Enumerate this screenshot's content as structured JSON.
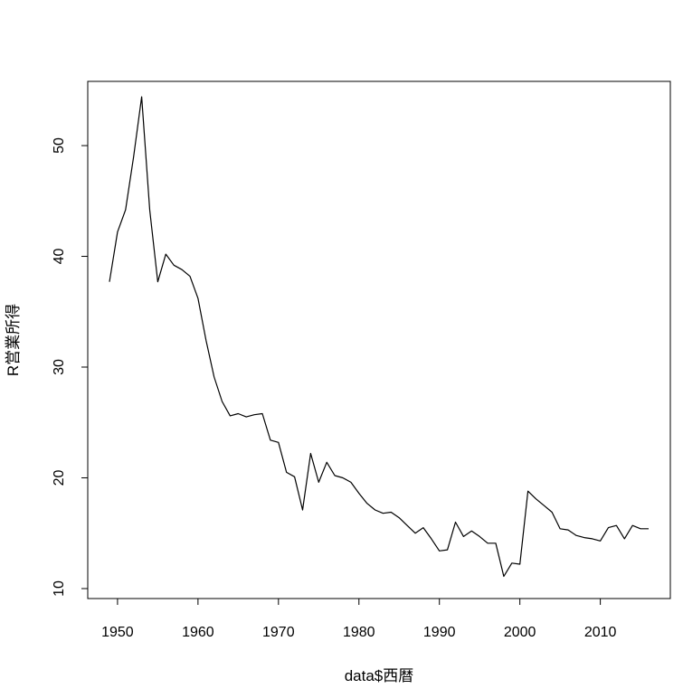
{
  "chart_data": {
    "type": "line",
    "title": "",
    "xlabel": "data$西暦",
    "ylabel": "R営業所得",
    "xlim": [
      1946.3,
      2018.7
    ],
    "ylim": [
      9.1,
      55.8
    ],
    "x_ticks": [
      1950,
      1960,
      1970,
      1980,
      1990,
      2000,
      2010
    ],
    "y_ticks": [
      10,
      20,
      30,
      40,
      50
    ],
    "x_tick_labels": [
      "1950",
      "1960",
      "1970",
      "1980",
      "1990",
      "2000",
      "2010"
    ],
    "y_tick_labels": [
      "10",
      "20",
      "30",
      "40",
      "50"
    ],
    "grid": false,
    "color": "#000000",
    "series": [
      {
        "x": [
          1949,
          1950,
          1951,
          1952,
          1953,
          1954,
          1955,
          1956,
          1957,
          1958,
          1959,
          1960,
          1961,
          1962,
          1963,
          1964,
          1965,
          1966,
          1967,
          1968,
          1969,
          1970,
          1971,
          1972,
          1973,
          1974,
          1975,
          1976,
          1977,
          1978,
          1979,
          1980,
          1981,
          1982,
          1983,
          1984,
          1985,
          1986,
          1987,
          1988,
          1989,
          1990,
          1991,
          1992,
          1993,
          1994,
          1995,
          1996,
          1997,
          1998,
          1999,
          2000,
          2001,
          2002,
          2003,
          2004,
          2005,
          2006,
          2007,
          2008,
          2009,
          2010,
          2011,
          2012,
          2013,
          2014,
          2015,
          2016
        ],
        "y": [
          37.7,
          42.2,
          44.2,
          49.0,
          54.4,
          44.2,
          37.7,
          40.2,
          39.2,
          38.8,
          38.2,
          36.2,
          32.4,
          29.1,
          26.9,
          25.6,
          25.8,
          25.5,
          25.7,
          25.8,
          23.4,
          23.2,
          20.5,
          20.1,
          17.1,
          22.2,
          19.6,
          21.4,
          20.2,
          20.0,
          19.6,
          18.6,
          17.7,
          17.1,
          16.8,
          16.9,
          16.4,
          15.7,
          15.0,
          15.5,
          14.5,
          13.4,
          13.5,
          16.0,
          14.7,
          15.2,
          14.7,
          14.1,
          14.1,
          11.1,
          12.3,
          12.2,
          18.8,
          18.1,
          17.5,
          16.9,
          15.4,
          15.3,
          14.8,
          14.6,
          14.5,
          14.3,
          15.5,
          15.7,
          14.5,
          15.7,
          15.4,
          15.4
        ]
      }
    ]
  }
}
